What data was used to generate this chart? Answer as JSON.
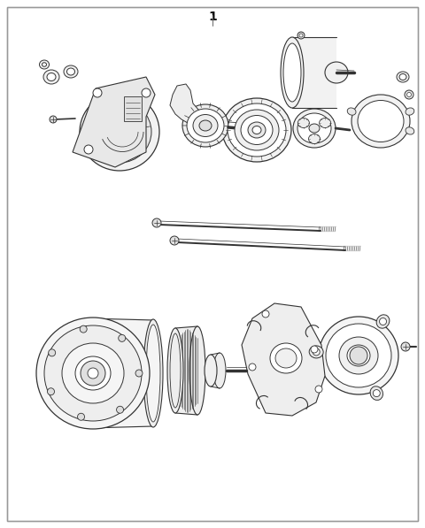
{
  "title_number": "1",
  "background_color": "#ffffff",
  "border_color": "#999999",
  "line_color": "#333333",
  "fig_width": 4.8,
  "fig_height": 5.97,
  "dpi": 100
}
